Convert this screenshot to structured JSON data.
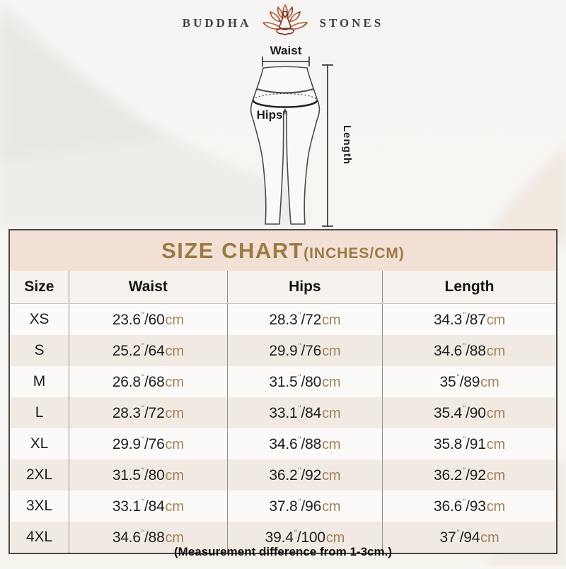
{
  "brand": {
    "name_left": "BUDDHA",
    "name_right": "STONES",
    "icon": "lotus-meditation-icon"
  },
  "diagram": {
    "waist_label": "Waist",
    "hips_label": "Hips",
    "length_label": "Length"
  },
  "size_chart": {
    "title": "SIZE CHART",
    "title_suffix": "(INCHES/CM)",
    "unit_inch_mark": "\"",
    "separator": "/",
    "unit_cm": "cm",
    "columns": [
      "Size",
      "Waist",
      "Hips",
      "Length"
    ],
    "rows": [
      {
        "size": "XS",
        "waist": [
          "23.6",
          "60"
        ],
        "hips": [
          "28.3",
          "72"
        ],
        "length": [
          "34.3",
          "87"
        ]
      },
      {
        "size": "S",
        "waist": [
          "25.2",
          "64"
        ],
        "hips": [
          "29.9",
          "76"
        ],
        "length": [
          "34.6",
          "88"
        ]
      },
      {
        "size": "M",
        "waist": [
          "26.8",
          "68"
        ],
        "hips": [
          "31.5",
          "80"
        ],
        "length": [
          "35",
          "89"
        ]
      },
      {
        "size": "L",
        "waist": [
          "28.3",
          "72"
        ],
        "hips": [
          "33.1",
          "84"
        ],
        "length": [
          "35.4",
          "90"
        ]
      },
      {
        "size": "XL",
        "waist": [
          "29.9",
          "76"
        ],
        "hips": [
          "34.6",
          "88"
        ],
        "length": [
          "35.8",
          "91"
        ]
      },
      {
        "size": "2XL",
        "waist": [
          "31.5",
          "80"
        ],
        "hips": [
          "36.2",
          "92"
        ],
        "length": [
          "36.2",
          "92"
        ]
      },
      {
        "size": "3XL",
        "waist": [
          "33.1",
          "84"
        ],
        "hips": [
          "37.8",
          "96"
        ],
        "length": [
          "36.6",
          "93"
        ]
      },
      {
        "size": "4XL",
        "waist": [
          "34.6",
          "88"
        ],
        "hips": [
          "39.4",
          "100"
        ],
        "length": [
          "37",
          "94"
        ]
      }
    ],
    "footnote": "(Measurement difference from 1-3cm.)"
  },
  "colors": {
    "accent_gold": "#9c7a44",
    "unit_tan": "#a1835a",
    "title_bar_bg": "#f2e0d4",
    "header_row_bg": "#f6f2ee",
    "row_alt_bg": "#f1eae2",
    "table_border": "#4a4846",
    "lotus_rust": "#b0502f",
    "lotus_figure": "#7e2f22"
  }
}
